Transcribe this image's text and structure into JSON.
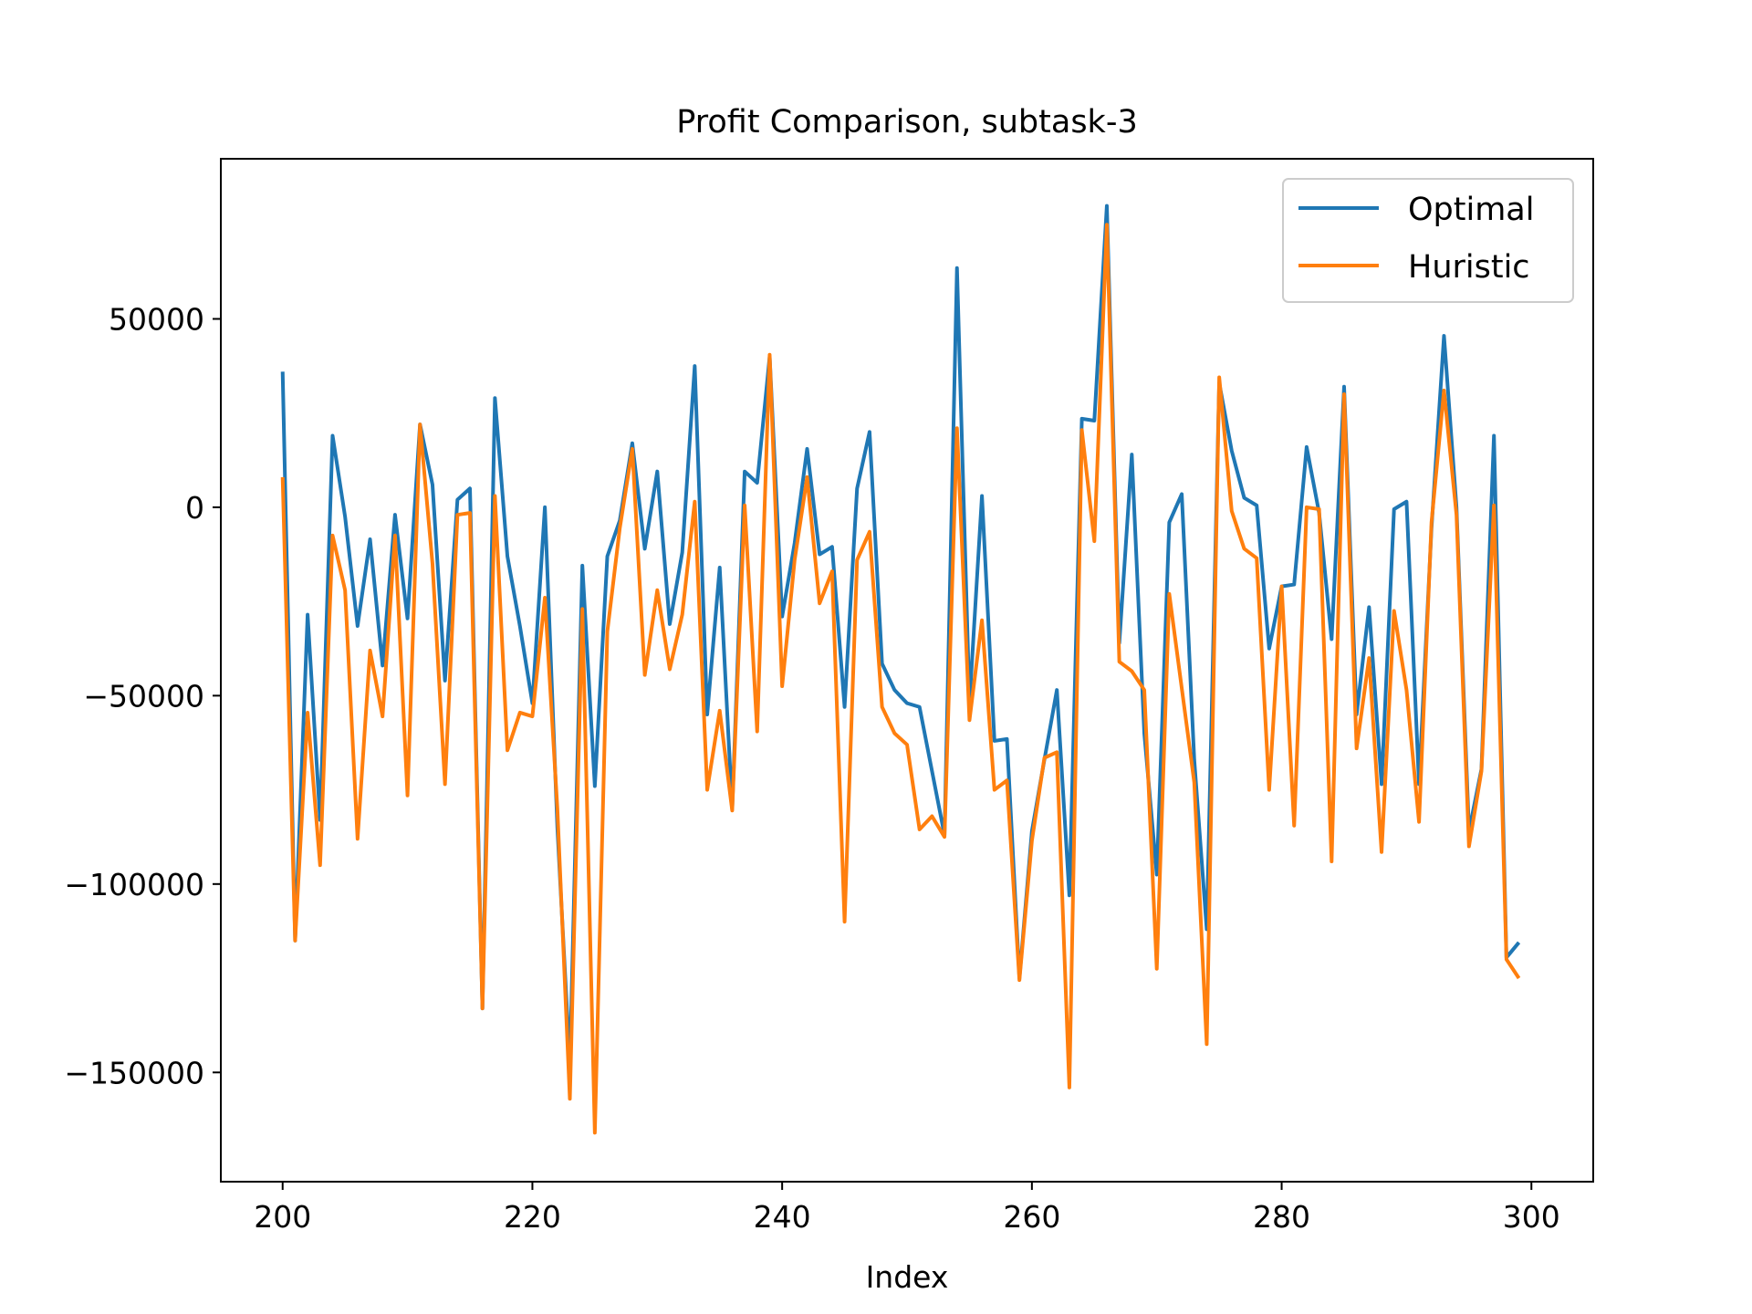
{
  "chart_data": {
    "type": "line",
    "title": "Profit Comparison, subtask-3",
    "xlabel": "Index",
    "ylabel": "",
    "xlim": [
      195.05,
      304.95
    ],
    "ylim": [
      -179000,
      92500
    ],
    "x_ticks": [
      200,
      220,
      240,
      260,
      280,
      300
    ],
    "y_ticks": [
      -150000,
      -100000,
      -50000,
      0,
      50000
    ],
    "y_tick_labels": [
      "−150000",
      "−100000",
      "−50000",
      "0",
      "50000"
    ],
    "grid": false,
    "legend_position": "top-right",
    "x_start": 200,
    "series": [
      {
        "name": "Optimal",
        "color": "#1f77b4",
        "values": [
          36000,
          -115000,
          -28500,
          -83000,
          19000,
          -2500,
          -31500,
          -8500,
          -42000,
          -2000,
          -29500,
          22000,
          6000,
          -46000,
          2000,
          5000,
          -133000,
          29000,
          -13000,
          -31500,
          -52000,
          0,
          -85000,
          -148000,
          -15500,
          -74000,
          -13000,
          -3500,
          17000,
          -11000,
          9500,
          -31000,
          -12000,
          37500,
          -55000,
          -16000,
          -80000,
          9500,
          6500,
          40000,
          -29000,
          -9500,
          15500,
          -12500,
          -10500,
          -53000,
          5000,
          20000,
          -41500,
          -48500,
          -52000,
          -53000,
          -70000,
          -87000,
          63500,
          -52000,
          3000,
          -62000,
          -61500,
          -125000,
          -86000,
          -67000,
          -48500,
          -103000,
          23500,
          23000,
          80000,
          -36000,
          14000,
          -60000,
          -97500,
          -4000,
          3500,
          -67000,
          -112000,
          33000,
          15000,
          2500,
          500,
          -37500,
          -21000,
          -20500,
          16000,
          -1500,
          -35000,
          32000,
          -55000,
          -26500,
          -73500,
          -500,
          1500,
          -73500,
          -5500,
          45500,
          0,
          -86000,
          -69500,
          19000,
          -119500,
          -115500
        ]
      },
      {
        "name": "Huristic",
        "color": "#ff7f0e",
        "values": [
          8000,
          -115000,
          -54500,
          -95000,
          -7500,
          -22000,
          -88000,
          -38000,
          -55500,
          -7500,
          -76500,
          22000,
          -15000,
          -73500,
          -2000,
          -1500,
          -133000,
          3000,
          -64500,
          -54500,
          -55500,
          -24000,
          -80000,
          -157000,
          -27000,
          -166000,
          -33000,
          -5500,
          15500,
          -44500,
          -22000,
          -43000,
          -28500,
          1500,
          -75000,
          -54000,
          -80500,
          500,
          -59500,
          40500,
          -47500,
          -14000,
          8000,
          -25500,
          -17000,
          -110000,
          -14000,
          -6500,
          -53000,
          -60000,
          -63000,
          -85500,
          -82000,
          -87500,
          21000,
          -56500,
          -30000,
          -75000,
          -72500,
          -125500,
          -88500,
          -66500,
          -65000,
          -154000,
          20500,
          -9000,
          75000,
          -41000,
          -43500,
          -48500,
          -122500,
          -23000,
          -48000,
          -73000,
          -142500,
          34500,
          -1000,
          -11000,
          -13500,
          -75000,
          -21000,
          -84500,
          0,
          -500,
          -94000,
          30000,
          -64000,
          -40000,
          -91500,
          -27500,
          -48500,
          -83500,
          -4000,
          31000,
          -2000,
          -90000,
          -70000,
          500,
          -120000,
          -125000
        ]
      }
    ]
  }
}
